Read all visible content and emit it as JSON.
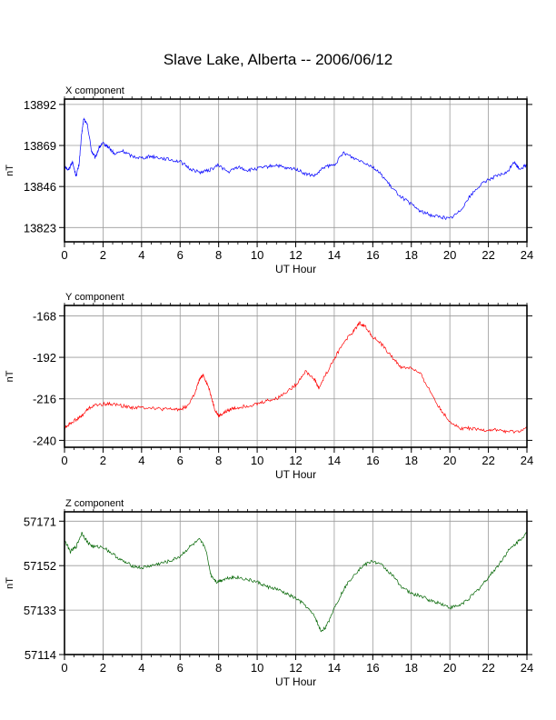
{
  "figure_title": "Slave Lake, Alberta -- 2006/06/12",
  "chart_data": [
    {
      "type": "line",
      "title": "X component",
      "xlabel": "UT Hour",
      "ylabel": "nT",
      "xlim": [
        0,
        24
      ],
      "ylim": [
        13815,
        13895
      ],
      "x_ticks": [
        0,
        2,
        4,
        6,
        8,
        10,
        12,
        14,
        16,
        18,
        20,
        22,
        24
      ],
      "y_ticks": [
        13823,
        13846,
        13869,
        13892
      ],
      "grid": true,
      "series": [
        {
          "color": "#0000ff",
          "x": [
            0,
            0.2,
            0.4,
            0.6,
            0.75,
            0.9,
            1.0,
            1.2,
            1.4,
            1.6,
            1.8,
            2.0,
            2.3,
            2.6,
            3.0,
            3.5,
            4.0,
            4.5,
            5.0,
            5.5,
            6.0,
            6.5,
            7.0,
            7.5,
            8.0,
            8.5,
            9.0,
            9.5,
            10.0,
            10.5,
            11.0,
            11.5,
            12.0,
            12.5,
            13.0,
            13.5,
            14.0,
            14.5,
            15.0,
            15.5,
            16.0,
            16.5,
            17.0,
            17.5,
            18.0,
            18.5,
            19.0,
            19.5,
            20.0,
            20.5,
            21.0,
            21.5,
            22.0,
            22.5,
            23.0,
            23.3,
            23.6,
            24.0
          ],
          "y": [
            13858,
            13855,
            13860,
            13852,
            13858,
            13876,
            13884,
            13880,
            13866,
            13862,
            13868,
            13870,
            13868,
            13864,
            13866,
            13863,
            13862,
            13863,
            13862,
            13861,
            13860,
            13856,
            13854,
            13855,
            13858,
            13854,
            13857,
            13855,
            13856,
            13857,
            13858,
            13856,
            13856,
            13853,
            13852,
            13857,
            13858,
            13865,
            13862,
            13860,
            13857,
            13852,
            13845,
            13840,
            13836,
            13832,
            13830,
            13829,
            13828,
            13832,
            13840,
            13846,
            13850,
            13852,
            13854,
            13860,
            13856,
            13858
          ]
        }
      ]
    },
    {
      "type": "line",
      "title": "Y component",
      "xlabel": "UT Hour",
      "ylabel": "nT",
      "xlim": [
        0,
        24
      ],
      "ylim": [
        -244,
        -162
      ],
      "x_ticks": [
        0,
        2,
        4,
        6,
        8,
        10,
        12,
        14,
        16,
        18,
        20,
        22,
        24
      ],
      "y_ticks": [
        -168,
        -192,
        -216,
        -240
      ],
      "grid": true,
      "series": [
        {
          "color": "#ff0000",
          "x": [
            0,
            0.3,
            0.6,
            0.9,
            1.2,
            1.5,
            2.0,
            2.5,
            3.0,
            3.5,
            4.0,
            4.5,
            5.0,
            5.5,
            6.0,
            6.4,
            6.8,
            7.0,
            7.2,
            7.5,
            7.8,
            8.0,
            8.3,
            8.6,
            9.0,
            9.5,
            10.0,
            10.5,
            11.0,
            11.5,
            12.0,
            12.5,
            13.0,
            13.2,
            13.5,
            14.0,
            14.5,
            15.0,
            15.3,
            15.6,
            16.0,
            16.5,
            17.0,
            17.5,
            18.0,
            18.5,
            19.0,
            19.5,
            20.0,
            20.5,
            21.0,
            21.5,
            22.0,
            22.5,
            23.0,
            23.5,
            24.0
          ],
          "y": [
            -233,
            -230,
            -228,
            -226,
            -222,
            -220,
            -219,
            -219,
            -220,
            -221,
            -221,
            -221,
            -222,
            -222,
            -222,
            -220,
            -212,
            -205,
            -202,
            -210,
            -222,
            -226,
            -224,
            -222,
            -221,
            -220,
            -219,
            -217,
            -216,
            -212,
            -208,
            -200,
            -205,
            -210,
            -203,
            -193,
            -183,
            -177,
            -172,
            -174,
            -180,
            -185,
            -192,
            -198,
            -198,
            -202,
            -212,
            -222,
            -229,
            -233,
            -233,
            -234,
            -234,
            -234,
            -235,
            -235,
            -233
          ]
        }
      ]
    },
    {
      "type": "line",
      "title": "Z component",
      "xlabel": "UT Hour",
      "ylabel": "nT",
      "xlim": [
        0,
        24
      ],
      "ylim": [
        57114,
        57175
      ],
      "x_ticks": [
        0,
        2,
        4,
        6,
        8,
        10,
        12,
        14,
        16,
        18,
        20,
        22,
        24
      ],
      "y_ticks": [
        57114,
        57133,
        57152,
        57171
      ],
      "grid": true,
      "series": [
        {
          "color": "#006400",
          "x": [
            0,
            0.3,
            0.6,
            0.9,
            1.2,
            1.5,
            2.0,
            2.5,
            3.0,
            3.5,
            4.0,
            4.5,
            5.0,
            5.5,
            6.0,
            6.5,
            7.0,
            7.3,
            7.6,
            7.9,
            8.2,
            8.6,
            9.0,
            9.5,
            10.0,
            10.5,
            11.0,
            11.5,
            12.0,
            12.5,
            13.0,
            13.3,
            13.6,
            14.0,
            14.5,
            15.0,
            15.5,
            16.0,
            16.5,
            17.0,
            17.5,
            18.0,
            18.5,
            19.0,
            19.5,
            20.0,
            20.5,
            21.0,
            21.5,
            22.0,
            22.5,
            23.0,
            23.5,
            24.0
          ],
          "y": [
            57163,
            57158,
            57160,
            57166,
            57162,
            57160,
            57160,
            57157,
            57154,
            57152,
            57151,
            57152,
            57153,
            57154,
            57156,
            57160,
            57163,
            57160,
            57148,
            57145,
            57146,
            57147,
            57147,
            57146,
            57145,
            57143,
            57142,
            57140,
            57138,
            57135,
            57130,
            57124,
            57126,
            57134,
            57142,
            57148,
            57152,
            57154,
            57152,
            57148,
            57143,
            57140,
            57139,
            57137,
            57136,
            57134,
            57135,
            57138,
            57142,
            57147,
            57152,
            57158,
            57162,
            57166
          ]
        }
      ]
    }
  ]
}
